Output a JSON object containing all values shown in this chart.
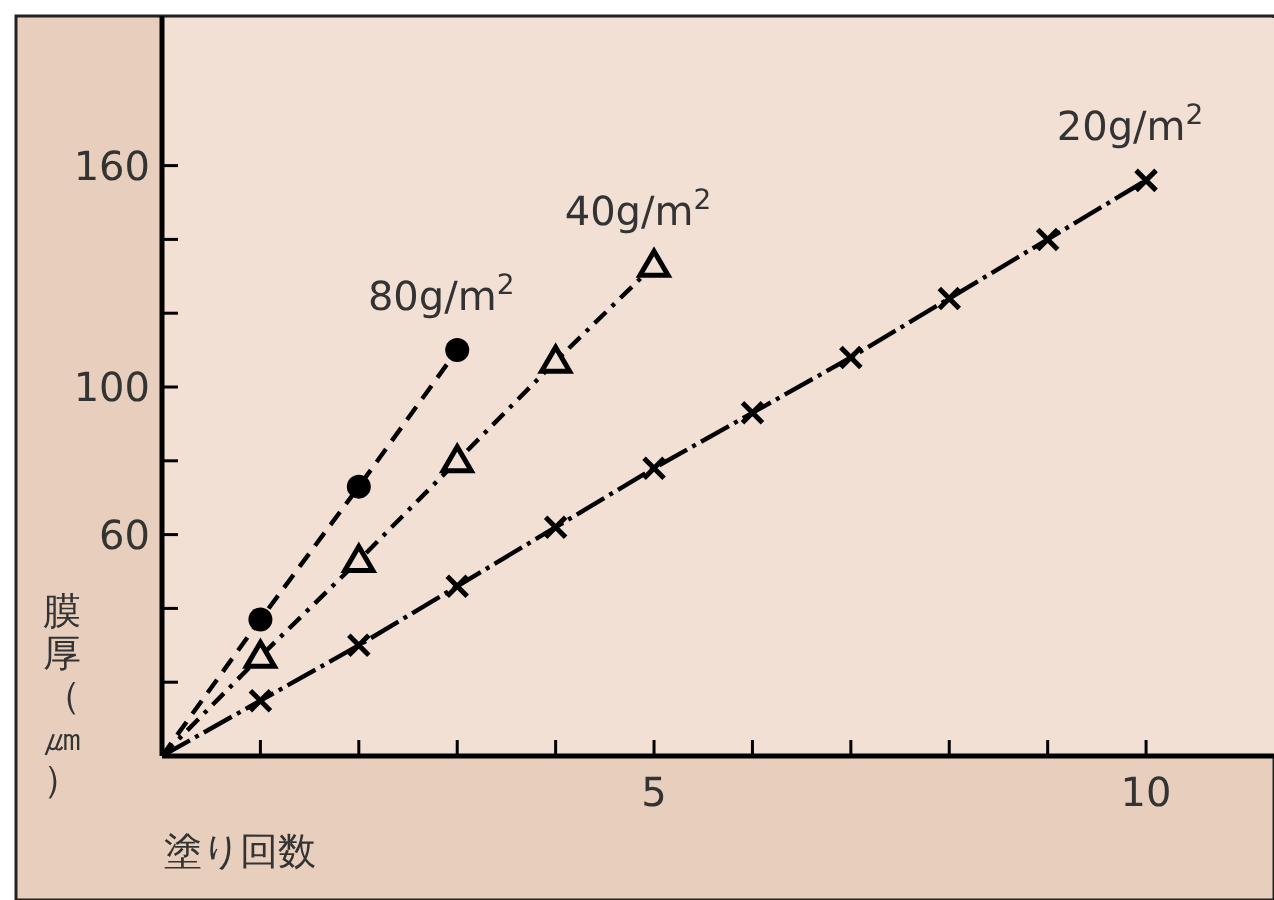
{
  "chart_data": {
    "type": "line",
    "xlabel": "塗り回数",
    "ylabel": "膜厚（㎛）",
    "xlim": [
      0,
      11.3
    ],
    "ylim": [
      0,
      200
    ],
    "xticks": [
      {
        "value": 1,
        "label": null
      },
      {
        "value": 2,
        "label": null
      },
      {
        "value": 3,
        "label": null
      },
      {
        "value": 4,
        "label": null
      },
      5,
      {
        "value": 6,
        "label": null
      },
      {
        "value": 7,
        "label": null
      },
      {
        "value": 8,
        "label": null
      },
      {
        "value": 9,
        "label": null
      },
      10
    ],
    "yticks": [
      {
        "value": 20,
        "label": null
      },
      {
        "value": 40,
        "label": null
      },
      60,
      {
        "value": 80,
        "label": null
      },
      100,
      {
        "value": 120,
        "label": null
      },
      {
        "value": 140,
        "label": null
      },
      160
    ],
    "grid": false,
    "series": [
      {
        "name": "80g/m$^{2}$",
        "color": "#000000",
        "marker": "circle",
        "line_style": "dashed",
        "x": [
          0,
          1,
          2,
          3
        ],
        "values": [
          0,
          37,
          73,
          110
        ]
      },
      {
        "name": "40g/m$^{2}$",
        "color": "#000000",
        "marker": "triangle",
        "line_style": "dashdot",
        "x": [
          0,
          1,
          2,
          3,
          4,
          5
        ],
        "values": [
          0,
          27,
          53,
          80,
          107,
          133
        ]
      },
      {
        "name": "20g/m$^{2}$",
        "color": "#000000",
        "marker": "cross",
        "line_style": "longdashdot",
        "x": [
          0,
          1,
          2,
          3,
          4,
          5,
          6,
          7,
          8,
          9,
          10
        ],
        "values": [
          0,
          15,
          30,
          46,
          62,
          78,
          93,
          108,
          124,
          140,
          156
        ]
      }
    ]
  }
}
